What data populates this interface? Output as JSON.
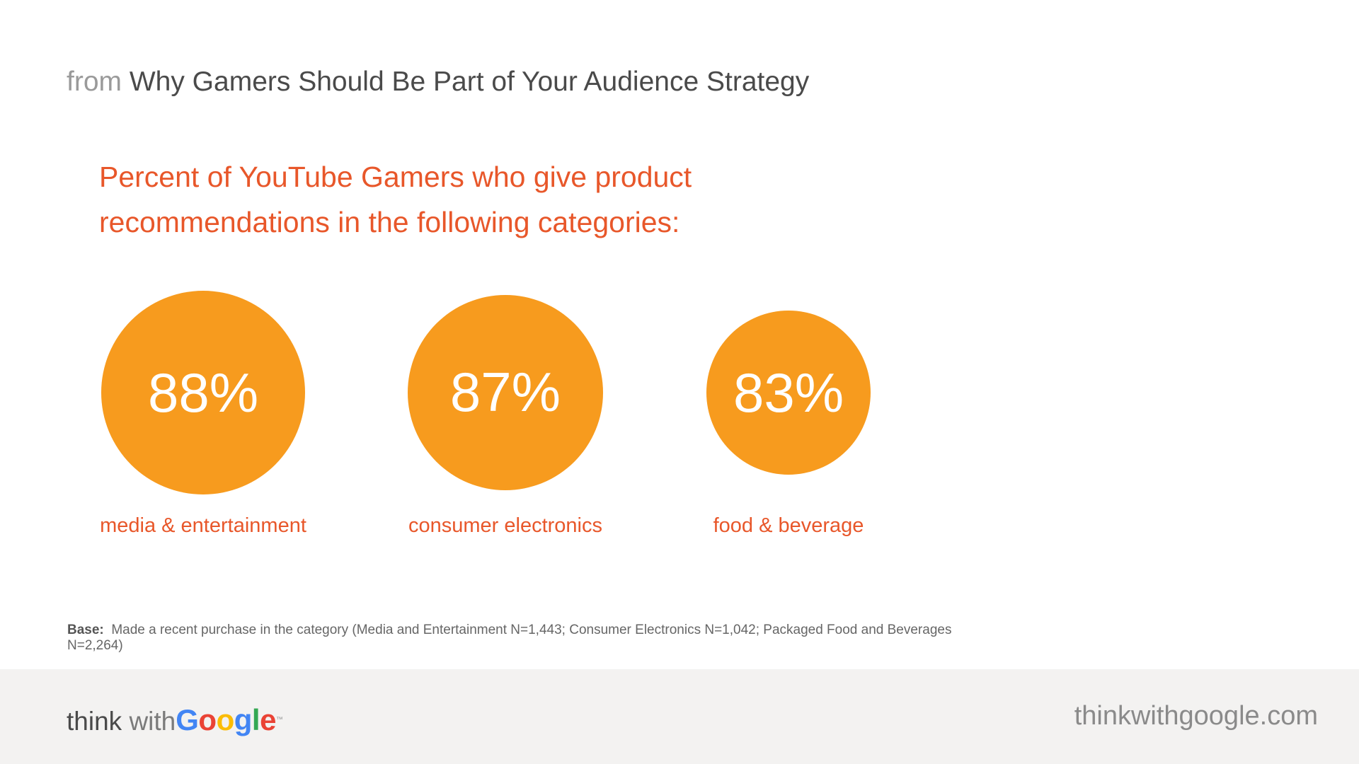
{
  "header": {
    "source_prefix": "from",
    "source_title": "Why Gamers Should Be Part of Your Audience Strategy"
  },
  "chart_data": {
    "type": "bubble",
    "title_lines": [
      "Percent of YouTube Gamers who give product",
      "recommendations in the following categories:"
    ],
    "categories": [
      "media & entertainment",
      "consumer electronics",
      "food & beverage"
    ],
    "values": [
      88,
      87,
      83
    ],
    "value_labels": [
      "88%",
      "87%",
      "83%"
    ],
    "unit": "%",
    "colors": {
      "bubble": "#f79b1e",
      "label": "#e8572a",
      "value_text": "#ffffff"
    }
  },
  "footnote": {
    "label": "Base:",
    "text": "Made a recent purchase in the category (Media and Entertainment N=1,443; Consumer Electronics N=1,042; Packaged Food and Beverages N=2,264)"
  },
  "footer": {
    "brand_think": "think",
    "brand_with": "with",
    "brand_google": [
      "G",
      "o",
      "o",
      "g",
      "l",
      "e"
    ],
    "brand_tm": "™",
    "url": "thinkwithgoogle.com"
  }
}
